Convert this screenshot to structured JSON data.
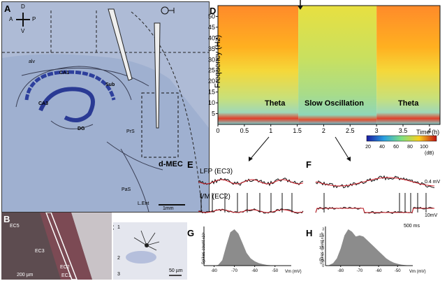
{
  "panels": {
    "A": {
      "label": "A",
      "compass": {
        "d": "D",
        "a": "A",
        "p": "P",
        "v": "V"
      },
      "regions": [
        "alv",
        "CA1",
        "CA3",
        "Sub",
        "DG",
        "PrS",
        "PaS",
        "L.Ent",
        "d-MEC"
      ],
      "scale_bar": "1mm"
    },
    "B": {
      "label": "B",
      "regions": [
        "EC5",
        "EC3",
        "EC2",
        "EC1"
      ],
      "scale_bar": "200 µm"
    },
    "C": {
      "label": "C",
      "layers": [
        "1",
        "2",
        "3"
      ],
      "scale_bar": "50 µm"
    },
    "D": {
      "label": "D",
      "states": [
        "Theta",
        "Slow Oscillation",
        "Theta"
      ]
    },
    "E": {
      "label": "E",
      "lfp": "LFP (EC3)",
      "vm": "VM (EC2)"
    },
    "F": {
      "label": "F",
      "scale_lfp": "0.4 mV",
      "scale_vm": "10mV",
      "scale_time": "500 ms"
    },
    "G": {
      "label": "G"
    },
    "H": {
      "label": "H"
    }
  },
  "chart_data": [
    {
      "id": "D",
      "type": "heatmap",
      "xlabel": "Time (h)",
      "ylabel": "Frequency (Hz)",
      "xlim": [
        0,
        4.2
      ],
      "ylim": [
        0,
        55
      ],
      "x_ticks": [
        "0",
        "0.5",
        "1",
        "1.5",
        "2",
        "2.5",
        "3",
        "3.5",
        "4"
      ],
      "y_ticks": [
        "5",
        "10",
        "15",
        "20",
        "25",
        "30",
        "35",
        "40",
        "45",
        "50"
      ],
      "colorbar": {
        "ticks": [
          "20",
          "40",
          "60",
          "80",
          "100"
        ],
        "unit": "(dB)"
      },
      "annotations": [
        "Theta",
        "Slow Oscillation",
        "Theta"
      ],
      "segments": [
        {
          "state": "theta",
          "start_h": 0,
          "end_h": 1.52
        },
        {
          "state": "slow_oscillation",
          "start_h": 1.52,
          "end_h": 3.0
        },
        {
          "state": "theta",
          "start_h": 3.0,
          "end_h": 4.2
        }
      ]
    },
    {
      "id": "G",
      "type": "area",
      "xlabel": "Vm (mV)",
      "ylabel": "Spikes count",
      "ylabel_exp": "x10⁵",
      "xlim": [
        -85,
        -42
      ],
      "x_ticks": [
        "-80",
        "-70",
        "-60",
        "-50"
      ],
      "y_ticks": [],
      "x": [
        -80,
        -78,
        -76,
        -74,
        -72,
        -70,
        -68,
        -66,
        -64,
        -62,
        -60,
        -58,
        -56,
        -54,
        -52,
        -50,
        -48,
        -46
      ],
      "values": [
        0,
        0.02,
        0.15,
        0.55,
        0.92,
        1.0,
        0.88,
        0.62,
        0.35,
        0.2,
        0.12,
        0.07,
        0.04,
        0.02,
        0.01,
        0.005,
        0.002,
        0
      ]
    },
    {
      "id": "H",
      "type": "area",
      "xlabel": "Vm (mV)",
      "ylabel": "Spikes count",
      "ylabel_exp": "x10⁵",
      "xlim": [
        -88,
        -42
      ],
      "x_ticks": [
        "-80",
        "-70",
        "-60",
        "-50"
      ],
      "y_ticks": [
        "0",
        "0.5",
        "1",
        "1.5",
        "2",
        "2.5",
        "3"
      ],
      "ylim": [
        0,
        3.2
      ],
      "x": [
        -86,
        -84,
        -82,
        -80,
        -78,
        -76,
        -74,
        -72,
        -70,
        -68,
        -66,
        -64,
        -62,
        -60,
        -58,
        -56,
        -54,
        -52,
        -50,
        -48,
        -46,
        -44
      ],
      "values": [
        0.05,
        0.2,
        0.6,
        1.4,
        2.5,
        3.0,
        2.8,
        2.4,
        2.5,
        2.4,
        2.1,
        1.8,
        1.5,
        1.2,
        0.9,
        0.6,
        0.4,
        0.25,
        0.15,
        0.08,
        0.04,
        0.01
      ]
    }
  ]
}
